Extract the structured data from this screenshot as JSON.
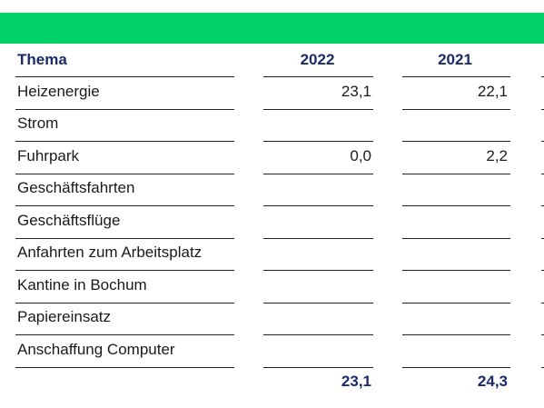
{
  "table": {
    "headers": {
      "topic": "Thema",
      "y2022": "2022",
      "y2021": "2021"
    },
    "rows": [
      {
        "topic": "Heizenergie",
        "y2022": "23,1",
        "y2021": "22,1"
      },
      {
        "topic": "Strom",
        "y2022": "",
        "y2021": ""
      },
      {
        "topic": "Fuhrpark",
        "y2022": "0,0",
        "y2021": "2,2"
      },
      {
        "topic": "Geschäftsfahrten",
        "y2022": "",
        "y2021": ""
      },
      {
        "topic": "Geschäftsflüge",
        "y2022": "",
        "y2021": ""
      },
      {
        "topic": "Anfahrten zum Arbeitsplatz",
        "y2022": "",
        "y2021": ""
      },
      {
        "topic": "Kantine in Bochum",
        "y2022": "",
        "y2021": ""
      },
      {
        "topic": "Papiereinsatz",
        "y2022": "",
        "y2021": ""
      },
      {
        "topic": "Anschaffung Computer",
        "y2022": "",
        "y2021": ""
      }
    ],
    "totals": {
      "y2022": "23,1",
      "y2021": "24,3"
    }
  },
  "colors": {
    "accent_bar": "#00d26a",
    "header_text": "#1b2a6b"
  }
}
